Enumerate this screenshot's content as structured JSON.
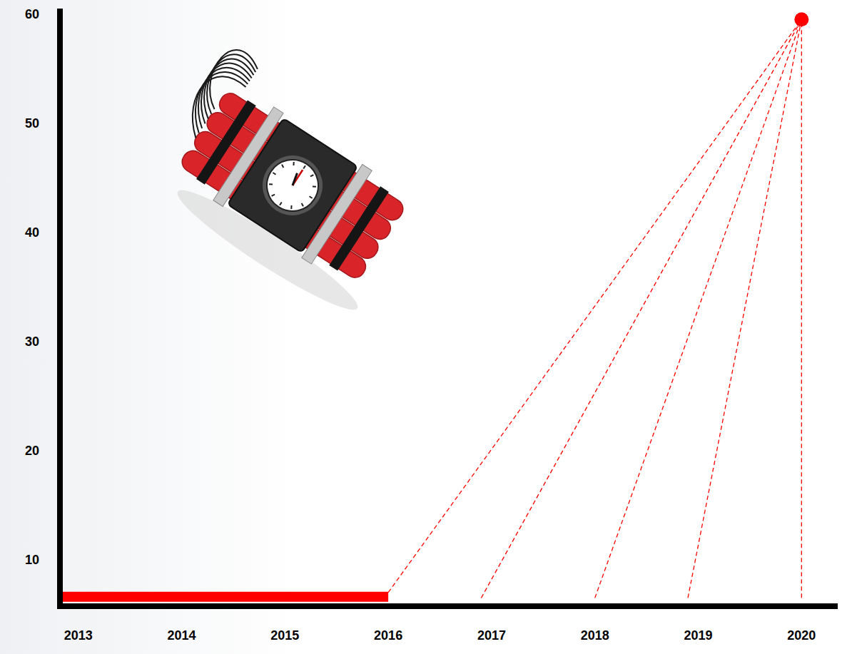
{
  "chart_data": {
    "type": "line",
    "xlim": [
      2012.85,
      2020.35
    ],
    "xticks": [
      2013,
      2014,
      2015,
      2016,
      2017,
      2018,
      2019,
      2020
    ],
    "ylim": [
      6,
      60.5
    ],
    "yticks": [
      10,
      20,
      30,
      40,
      50,
      60
    ],
    "grid": false,
    "series": [
      {
        "type": "line",
        "color": "#ff0000",
        "line_style": "solid",
        "x": [
          2012.85,
          2016
        ],
        "values": [
          6.6,
          6.6
        ]
      },
      {
        "type": "line",
        "color": "#ff0000",
        "line_style": "dashed",
        "x": [
          2016,
          2020
        ],
        "values": [
          7,
          59.5
        ]
      },
      {
        "type": "line",
        "color": "#ff0000",
        "line_style": "dashed",
        "x": [
          2016.9,
          2020
        ],
        "values": [
          6.5,
          59.5
        ]
      },
      {
        "type": "line",
        "color": "#ff0000",
        "line_style": "dashed",
        "x": [
          2018,
          2020
        ],
        "values": [
          6.5,
          59.5
        ]
      },
      {
        "type": "line",
        "color": "#ff0000",
        "line_style": "dashed",
        "x": [
          2018.9,
          2020
        ],
        "values": [
          6.5,
          59.5
        ]
      },
      {
        "type": "line",
        "color": "#ff0000",
        "line_style": "dashed",
        "x": [
          2020,
          2020
        ],
        "values": [
          6.5,
          59.5
        ]
      },
      {
        "type": "scatter",
        "color": "#ff0000",
        "marker": "circle",
        "x": [
          2020
        ],
        "values": [
          59.5
        ]
      }
    ]
  }
}
